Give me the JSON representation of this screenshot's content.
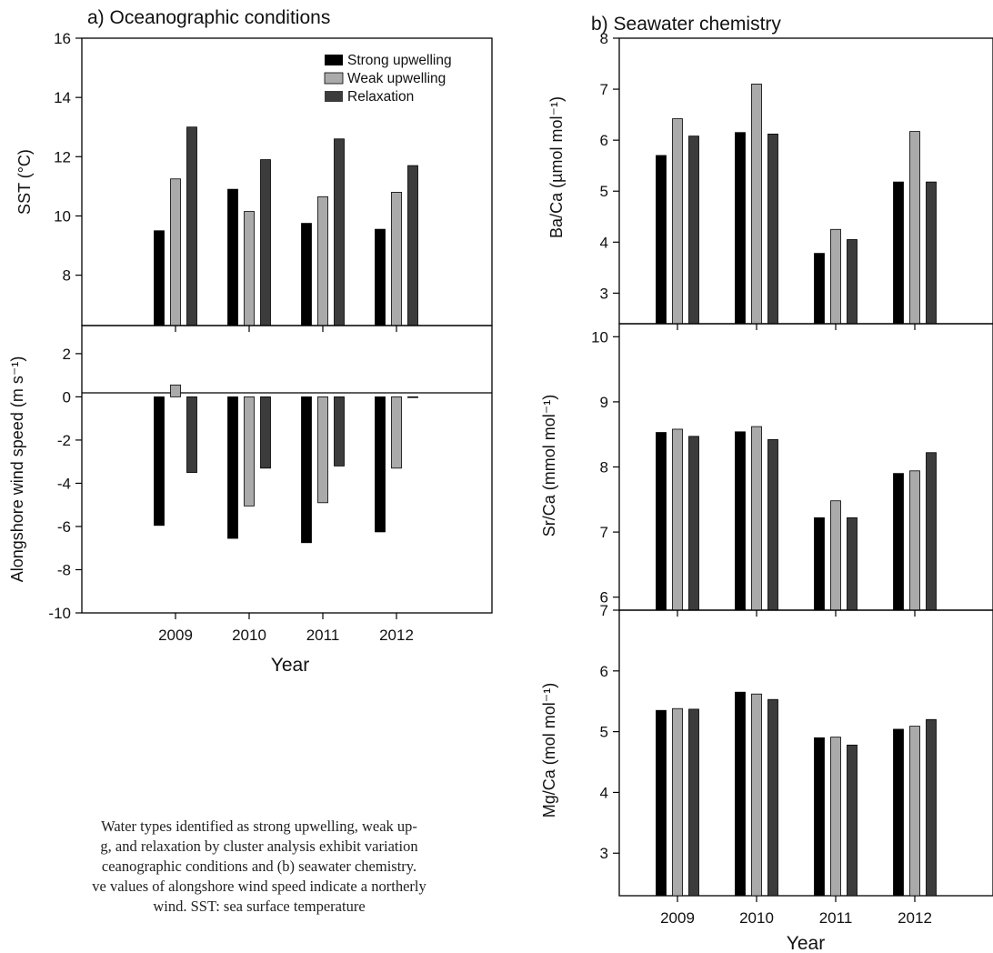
{
  "caption": {
    "lines": [
      "Water types identified as strong upwelling, weak up-",
      "g, and relaxation by cluster analysis exhibit variation",
      "ceanographic conditions and (b) seawater chemistry.",
      "ve values of alongshore wind speed indicate a northerly",
      "wind. SST: sea surface temperature"
    ]
  },
  "colors": {
    "strong": "#000000",
    "weak": "#aaaaaa",
    "relax": "#3c3c3c"
  },
  "chart_data": [
    {
      "type": "bar",
      "title": "a) Oceanographic conditions",
      "xlabel": "Year",
      "ylabel": "SST (°C)",
      "categories": [
        "2009",
        "2010",
        "2011",
        "2012"
      ],
      "legend": [
        "Strong upwelling",
        "Weak upwelling",
        "Relaxation"
      ],
      "legend_position": "top-right",
      "ylim": [
        6.3,
        16
      ],
      "yticks": [
        "8",
        "10",
        "12",
        "14",
        "16"
      ],
      "series": [
        {
          "name": "Strong upwelling",
          "values": [
            9.5,
            10.9,
            9.75,
            9.55
          ]
        },
        {
          "name": "Weak upwelling",
          "values": [
            11.25,
            10.15,
            10.65,
            10.8
          ]
        },
        {
          "name": "Relaxation",
          "values": [
            13.0,
            11.9,
            12.6,
            11.7
          ]
        }
      ]
    },
    {
      "type": "bar",
      "xlabel": "Year",
      "ylabel": "Alongshore wind speed (m s⁻¹)",
      "categories": [
        "2009",
        "2010",
        "2011",
        "2012"
      ],
      "ylim": [
        -10,
        3.3
      ],
      "yticks": [
        "-10",
        "-8",
        "-6",
        "-4",
        "-2",
        "0",
        "2"
      ],
      "series": [
        {
          "name": "Strong upwelling",
          "values": [
            -5.95,
            -6.55,
            -6.75,
            -6.25
          ]
        },
        {
          "name": "Weak upwelling",
          "values": [
            0.55,
            -5.05,
            -4.9,
            -3.3
          ]
        },
        {
          "name": "Relaxation",
          "values": [
            -3.5,
            -3.3,
            -3.2,
            0
          ]
        }
      ]
    },
    {
      "type": "bar",
      "title": "b) Seawater chemistry",
      "ylabel": "Ba/Ca (µmol mol⁻¹)",
      "categories": [
        "2009",
        "2010",
        "2011",
        "2012"
      ],
      "ylim": [
        2.4,
        8
      ],
      "yticks": [
        "3",
        "4",
        "5",
        "6",
        "7",
        "8"
      ],
      "series": [
        {
          "name": "Strong upwelling",
          "values": [
            5.7,
            6.15,
            3.78,
            5.18
          ]
        },
        {
          "name": "Weak upwelling",
          "values": [
            6.42,
            7.1,
            4.25,
            6.17
          ]
        },
        {
          "name": "Relaxation",
          "values": [
            6.08,
            6.12,
            4.05,
            5.18
          ]
        }
      ]
    },
    {
      "type": "bar",
      "ylabel": "Sr/Ca (mmol mol⁻¹)",
      "categories": [
        "2009",
        "2010",
        "2011",
        "2012"
      ],
      "ylim": [
        5.8,
        10.2
      ],
      "yticks": [
        "6",
        "7",
        "8",
        "9",
        "10"
      ],
      "series": [
        {
          "name": "Strong upwelling",
          "values": [
            8.53,
            8.54,
            7.22,
            7.9
          ]
        },
        {
          "name": "Weak upwelling",
          "values": [
            8.58,
            8.62,
            7.48,
            7.94
          ]
        },
        {
          "name": "Relaxation",
          "values": [
            8.47,
            8.42,
            7.22,
            8.22
          ]
        }
      ]
    },
    {
      "type": "bar",
      "xlabel": "Year",
      "ylabel": "Mg/Ca (mol mol⁻¹)",
      "categories": [
        "2009",
        "2010",
        "2011",
        "2012"
      ],
      "ylim": [
        2.3,
        7
      ],
      "yticks": [
        "3",
        "4",
        "5",
        "6",
        "7"
      ],
      "series": [
        {
          "name": "Strong upwelling",
          "values": [
            5.35,
            5.65,
            4.9,
            5.04
          ]
        },
        {
          "name": "Weak upwelling",
          "values": [
            5.38,
            5.62,
            4.91,
            5.09
          ]
        },
        {
          "name": "Relaxation",
          "values": [
            5.37,
            5.53,
            4.78,
            5.2
          ]
        }
      ]
    }
  ]
}
